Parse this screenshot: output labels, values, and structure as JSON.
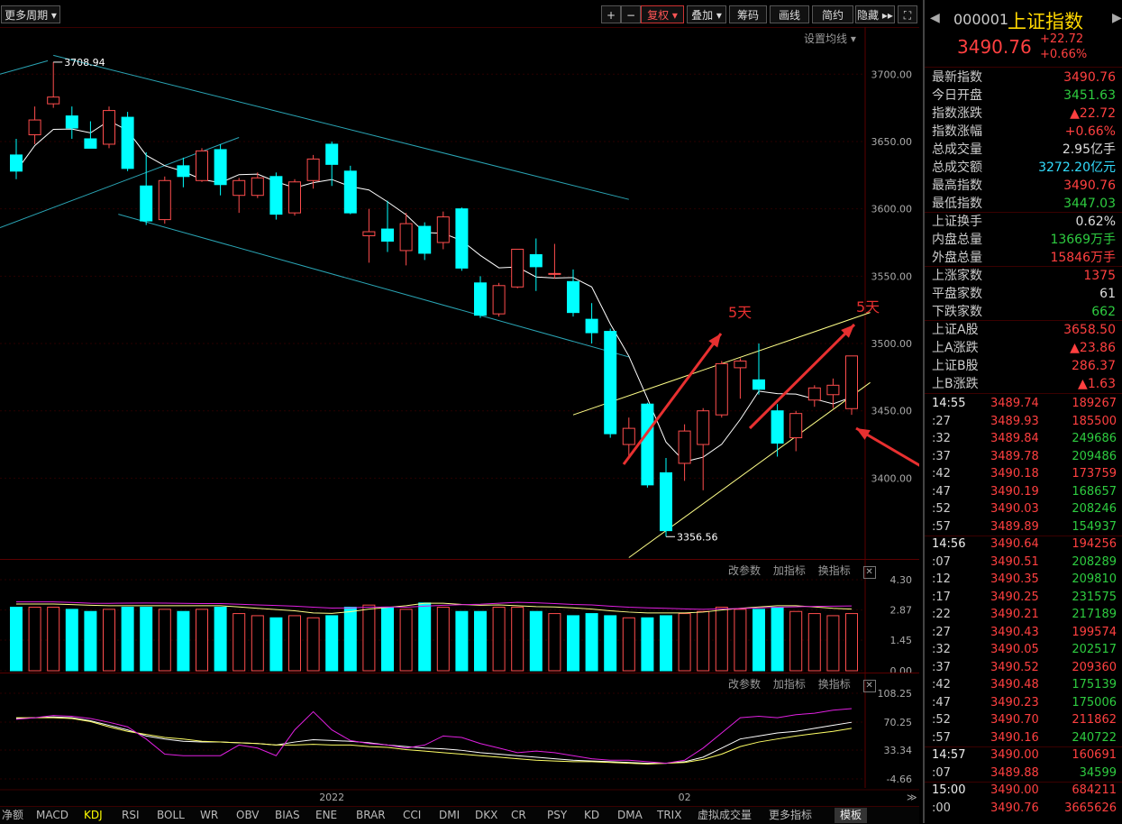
{
  "toolbar": {
    "period": "更多周期",
    "plus": "+",
    "minus": "−",
    "fuquan": "复权",
    "overlay": "叠加",
    "chips": "筹码",
    "drawline": "画线",
    "simple": "简约",
    "hide": "隐藏",
    "expand_icon": "fullscreen-icon"
  },
  "main_chart": {
    "set_ma": "设置均线",
    "price_axis": [
      "3700.00",
      "3650.00",
      "3600.00",
      "3550.00",
      "3500.00",
      "3450.00",
      "3400.00"
    ],
    "high_label": "3708.94",
    "low_label": "3356.56",
    "annotation_1": "5天",
    "annotation_2": "5天"
  },
  "volume_panel": {
    "tools": [
      "改参数",
      "加指标",
      "换指标"
    ],
    "axis": [
      "4.30",
      "2.87",
      "1.45",
      "0.00"
    ]
  },
  "kdj_panel": {
    "tools": [
      "改参数",
      "加指标",
      "换指标"
    ],
    "axis": [
      "108.25",
      "70.25",
      "33.34",
      "-4.66"
    ],
    "x_labels": [
      "2022",
      "02"
    ]
  },
  "tabs": [
    "净额",
    "MACD",
    "KDJ",
    "RSI",
    "BOLL",
    "WR",
    "OBV",
    "BIAS",
    "ENE",
    "BRAR",
    "CCI",
    "DMI",
    "DKX",
    "CR",
    "PSY",
    "KD",
    "DMA",
    "TRIX",
    "虚拟成交量",
    "更多指标",
    "模板"
  ],
  "active_tab": "KDJ",
  "right_panel": {
    "code": "000001",
    "name": "上证指数",
    "price": "3490.76",
    "change": "+22.72",
    "change_pct": "+0.66%",
    "stats": [
      {
        "label": "最新指数",
        "value": "3490.76",
        "color": "red"
      },
      {
        "label": "今日开盘",
        "value": "3451.63",
        "color": "green"
      },
      {
        "label": "指数涨跌",
        "value": "▲22.72",
        "color": "red"
      },
      {
        "label": "指数涨幅",
        "value": "+0.66%",
        "color": "red"
      },
      {
        "label": "总成交量",
        "value": "2.95亿手",
        "color": "white"
      },
      {
        "label": "总成交额",
        "value": "3272.20亿元",
        "color": "cyan"
      },
      {
        "label": "最高指数",
        "value": "3490.76",
        "color": "red"
      },
      {
        "label": "最低指数",
        "value": "3447.03",
        "color": "green"
      },
      {
        "label": "上证换手",
        "value": "0.62%",
        "color": "white"
      },
      {
        "label": "内盘总量",
        "value": "13669万手",
        "color": "green"
      },
      {
        "label": "外盘总量",
        "value": "15846万手",
        "color": "red"
      },
      {
        "label": "上涨家数",
        "value": "1375",
        "color": "red"
      },
      {
        "label": "平盘家数",
        "value": "61",
        "color": "white"
      },
      {
        "label": "下跌家数",
        "value": "662",
        "color": "green"
      },
      {
        "label": "上证A股",
        "value": "3658.50",
        "color": "red"
      },
      {
        "label": "上A涨跌",
        "value": "▲23.86",
        "color": "red"
      },
      {
        "label": "上证B股",
        "value": "286.37",
        "color": "red"
      },
      {
        "label": "上B涨跌",
        "value": "▲1.63",
        "color": "red"
      }
    ],
    "ticks": [
      {
        "time": "14:55",
        "price": "3489.74",
        "vol": "189267",
        "vc": "red"
      },
      {
        "time": ":27",
        "price": "3489.93",
        "vol": "185500",
        "vc": "red"
      },
      {
        "time": ":32",
        "price": "3489.84",
        "vol": "249686",
        "vc": "green"
      },
      {
        "time": ":37",
        "price": "3489.78",
        "vol": "209486",
        "vc": "green"
      },
      {
        "time": ":42",
        "price": "3490.18",
        "vol": "173759",
        "vc": "red"
      },
      {
        "time": ":47",
        "price": "3490.19",
        "vol": "168657",
        "vc": "green"
      },
      {
        "time": ":52",
        "price": "3490.03",
        "vol": "208246",
        "vc": "green"
      },
      {
        "time": ":57",
        "price": "3489.89",
        "vol": "154937",
        "vc": "green"
      },
      {
        "time": "14:56",
        "price": "3490.64",
        "vol": "194256",
        "vc": "red"
      },
      {
        "time": ":07",
        "price": "3490.51",
        "vol": "208289",
        "vc": "green"
      },
      {
        "time": ":12",
        "price": "3490.35",
        "vol": "209810",
        "vc": "green"
      },
      {
        "time": ":17",
        "price": "3490.25",
        "vol": "231575",
        "vc": "green"
      },
      {
        "time": ":22",
        "price": "3490.21",
        "vol": "217189",
        "vc": "green"
      },
      {
        "time": ":27",
        "price": "3490.43",
        "vol": "199574",
        "vc": "red"
      },
      {
        "time": ":32",
        "price": "3490.05",
        "vol": "202517",
        "vc": "green"
      },
      {
        "time": ":37",
        "price": "3490.52",
        "vol": "209360",
        "vc": "red"
      },
      {
        "time": ":42",
        "price": "3490.48",
        "vol": "175139",
        "vc": "green"
      },
      {
        "time": ":47",
        "price": "3490.23",
        "vol": "175006",
        "vc": "green"
      },
      {
        "time": ":52",
        "price": "3490.70",
        "vol": "211862",
        "vc": "red"
      },
      {
        "time": ":57",
        "price": "3490.16",
        "vol": "240722",
        "vc": "green"
      },
      {
        "time": "14:57",
        "price": "3490.00",
        "vol": "160691",
        "vc": "red"
      },
      {
        "time": ":07",
        "price": "3489.88",
        "vol": "34599",
        "vc": "green"
      },
      {
        "time": "15:00",
        "price": "3490.00",
        "vol": "684211",
        "vc": "red"
      },
      {
        "time": ":00",
        "price": "3490.76",
        "vol": "3665626",
        "vc": "red"
      }
    ]
  },
  "chart_data": {
    "type": "candlestick",
    "ylim": [
      3340,
      3735
    ],
    "candles": [
      {
        "o": 3640,
        "h": 3652,
        "l": 3622,
        "c": 3628
      },
      {
        "o": 3655,
        "h": 3676,
        "l": 3648,
        "c": 3666
      },
      {
        "o": 3678,
        "h": 3708.94,
        "l": 3675,
        "c": 3683
      },
      {
        "o": 3669,
        "h": 3676,
        "l": 3652,
        "c": 3660
      },
      {
        "o": 3652,
        "h": 3665,
        "l": 3645,
        "c": 3645
      },
      {
        "o": 3648,
        "h": 3676,
        "l": 3645,
        "c": 3673
      },
      {
        "o": 3668,
        "h": 3672,
        "l": 3628,
        "c": 3630
      },
      {
        "o": 3617,
        "h": 3642,
        "l": 3588,
        "c": 3591
      },
      {
        "o": 3592,
        "h": 3624,
        "l": 3589,
        "c": 3621
      },
      {
        "o": 3632,
        "h": 3638,
        "l": 3616,
        "c": 3624
      },
      {
        "o": 3621,
        "h": 3645,
        "l": 3620,
        "c": 3643
      },
      {
        "o": 3644,
        "h": 3648,
        "l": 3610,
        "c": 3618
      },
      {
        "o": 3610,
        "h": 3623,
        "l": 3597,
        "c": 3621
      },
      {
        "o": 3610,
        "h": 3627,
        "l": 3608,
        "c": 3623
      },
      {
        "o": 3624,
        "h": 3627,
        "l": 3592,
        "c": 3596
      },
      {
        "o": 3597,
        "h": 3622,
        "l": 3595,
        "c": 3620
      },
      {
        "o": 3621,
        "h": 3640,
        "l": 3615,
        "c": 3637
      },
      {
        "o": 3648,
        "h": 3650,
        "l": 3617,
        "c": 3633
      },
      {
        "o": 3628,
        "h": 3632,
        "l": 3596,
        "c": 3597
      },
      {
        "o": 3580,
        "h": 3600,
        "l": 3560,
        "c": 3583
      },
      {
        "o": 3585,
        "h": 3606,
        "l": 3568,
        "c": 3576
      },
      {
        "o": 3569,
        "h": 3597,
        "l": 3558,
        "c": 3589
      },
      {
        "o": 3587,
        "h": 3590,
        "l": 3562,
        "c": 3567
      },
      {
        "o": 3575,
        "h": 3598,
        "l": 3570,
        "c": 3594
      },
      {
        "o": 3600,
        "h": 3601,
        "l": 3554,
        "c": 3556
      },
      {
        "o": 3545,
        "h": 3550,
        "l": 3519,
        "c": 3521
      },
      {
        "o": 3522,
        "h": 3545,
        "l": 3520,
        "c": 3543
      },
      {
        "o": 3542,
        "h": 3570,
        "l": 3541,
        "c": 3570
      },
      {
        "o": 3566,
        "h": 3578,
        "l": 3539,
        "c": 3557
      },
      {
        "o": 3552,
        "h": 3574,
        "l": 3548,
        "c": 3552
      },
      {
        "o": 3546,
        "h": 3555,
        "l": 3520,
        "c": 3523
      },
      {
        "o": 3518,
        "h": 3530,
        "l": 3500,
        "c": 3508
      },
      {
        "o": 3509,
        "h": 3511,
        "l": 3430,
        "c": 3433
      },
      {
        "o": 3425,
        "h": 3445,
        "l": 3415,
        "c": 3437
      },
      {
        "o": 3455,
        "h": 3456,
        "l": 3393,
        "c": 3395
      },
      {
        "o": 3404,
        "h": 3415,
        "l": 3356.56,
        "c": 3361
      },
      {
        "o": 3411,
        "h": 3440,
        "l": 3398,
        "c": 3435
      },
      {
        "o": 3425,
        "h": 3452,
        "l": 3391,
        "c": 3450
      },
      {
        "o": 3447,
        "h": 3487,
        "l": 3445,
        "c": 3485
      },
      {
        "o": 3482,
        "h": 3489,
        "l": 3459,
        "c": 3487
      },
      {
        "o": 3473,
        "h": 3500,
        "l": 3462,
        "c": 3466
      },
      {
        "o": 3450,
        "h": 3455,
        "l": 3416,
        "c": 3426
      },
      {
        "o": 3430,
        "h": 3450,
        "l": 3420,
        "c": 3448
      },
      {
        "o": 3458,
        "h": 3469,
        "l": 3453,
        "c": 3467
      },
      {
        "o": 3462,
        "h": 3474,
        "l": 3452,
        "c": 3469
      },
      {
        "o": 3451.63,
        "h": 3490.76,
        "l": 3447.03,
        "c": 3490.76
      }
    ],
    "volume_ylim": [
      0,
      4.3
    ],
    "volume": [
      3.0,
      3.0,
      3.0,
      2.9,
      2.8,
      2.9,
      3.0,
      3.0,
      2.9,
      2.8,
      2.9,
      3.0,
      2.7,
      2.6,
      2.5,
      2.6,
      2.5,
      2.6,
      3.0,
      3.1,
      3.0,
      2.9,
      3.2,
      3.0,
      2.8,
      2.8,
      3.0,
      3.0,
      2.8,
      2.7,
      2.6,
      2.7,
      2.6,
      2.5,
      2.5,
      2.6,
      2.7,
      2.8,
      3.0,
      2.9,
      2.9,
      3.0,
      2.8,
      2.7,
      2.6,
      2.7
    ],
    "kdj_ylim": [
      -4.66,
      108.25
    ],
    "k": [
      75,
      76,
      77,
      76,
      72,
      66,
      60,
      52,
      48,
      45,
      44,
      44,
      43,
      42,
      40,
      44,
      47,
      46,
      45,
      43,
      40,
      38,
      36,
      35,
      33,
      30,
      28,
      26,
      24,
      22,
      20,
      19,
      18,
      17,
      16,
      16,
      18,
      24,
      36,
      48,
      52,
      56,
      58,
      62,
      66,
      70
    ],
    "d": [
      76,
      76,
      76,
      75,
      71,
      64,
      58,
      54,
      50,
      48,
      45,
      44,
      43,
      42,
      40,
      40,
      41,
      40,
      40,
      38,
      37,
      34,
      32,
      30,
      28,
      26,
      24,
      22,
      20,
      19,
      18,
      18,
      17,
      16,
      15,
      16,
      17,
      21,
      28,
      38,
      44,
      48,
      52,
      55,
      58,
      62
    ],
    "j": [
      74,
      76,
      79,
      78,
      75,
      70,
      64,
      48,
      28,
      26,
      26,
      26,
      40,
      36,
      26,
      60,
      84,
      60,
      46,
      42,
      40,
      36,
      40,
      52,
      50,
      42,
      36,
      30,
      32,
      30,
      26,
      22,
      20,
      20,
      18,
      16,
      20,
      36,
      56,
      76,
      78,
      76,
      80,
      82,
      86,
      88
    ],
    "kdj_colors": {
      "k": "#ffffff",
      "d": "#ffff66",
      "j": "#e020e0"
    },
    "ma_color": "#ffffff",
    "up_color": "#ff4d4d",
    "down_color": "#00ffff"
  }
}
